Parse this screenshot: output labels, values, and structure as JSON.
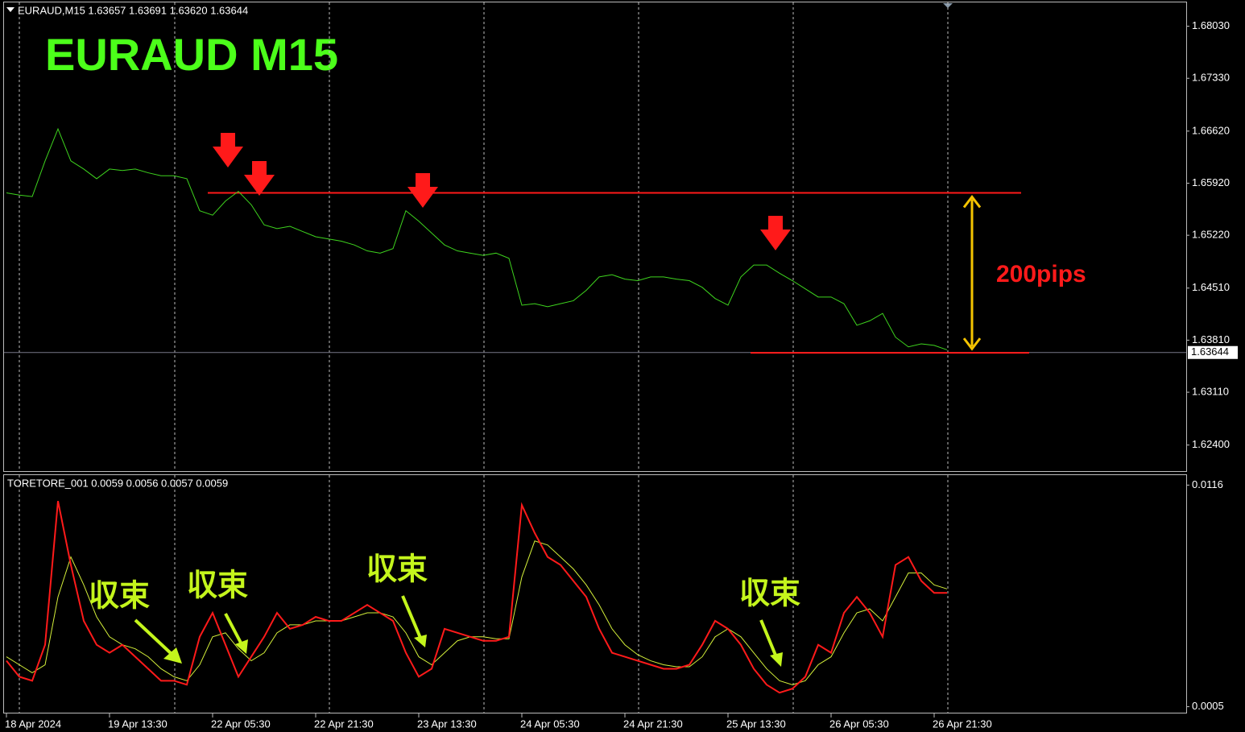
{
  "chart_data": [
    {
      "type": "line",
      "header": "EURAUD,M15  1.63657 1.63691 1.63620 1.63644",
      "title": "EURAUD  M15",
      "annotation": "200pips",
      "color": "#3ed41e",
      "categories": [
        "18 Apr 2024",
        null,
        null,
        null,
        null,
        null,
        null,
        null,
        "19 Apr 13:30",
        null,
        null,
        null,
        null,
        null,
        null,
        null,
        "22 Apr 05:30",
        null,
        null,
        null,
        null,
        null,
        null,
        null,
        "22 Apr 21:30",
        null,
        null,
        null,
        null,
        null,
        null,
        null,
        "23 Apr 13:30",
        null,
        null,
        null,
        null,
        null,
        null,
        null,
        "24 Apr 05:30",
        null,
        null,
        null,
        null,
        null,
        null,
        null,
        "24 Apr 21:30",
        null,
        null,
        null,
        null,
        null,
        null,
        null,
        "25 Apr 13:30",
        null,
        null,
        null,
        null,
        null,
        null,
        null,
        "26 Apr 05:30",
        null,
        null,
        null,
        null,
        null,
        null,
        null,
        "26 Apr 21:30",
        null
      ],
      "values": [
        1.6579,
        1.6576,
        1.6574,
        1.6622,
        1.6665,
        1.6622,
        1.6611,
        1.6598,
        1.6611,
        1.6609,
        1.6611,
        1.6606,
        1.6602,
        1.6602,
        1.6598,
        1.6555,
        1.6549,
        1.6568,
        1.6581,
        1.6563,
        1.6536,
        1.6531,
        1.6534,
        1.6527,
        1.652,
        1.6517,
        1.6514,
        1.6509,
        1.6501,
        1.6498,
        1.6504,
        1.6555,
        1.6541,
        1.6525,
        1.6509,
        1.6501,
        1.6498,
        1.6495,
        1.6498,
        1.6491,
        1.6428,
        1.643,
        1.6426,
        1.643,
        1.6434,
        1.6448,
        1.6466,
        1.6469,
        1.6463,
        1.6461,
        1.6466,
        1.6466,
        1.6463,
        1.6461,
        1.6452,
        1.6437,
        1.6428,
        1.6466,
        1.6482,
        1.6482,
        1.6471,
        1.6461,
        1.645,
        1.6439,
        1.6439,
        1.643,
        1.6401,
        1.6407,
        1.6417,
        1.6385,
        1.6372,
        1.6376,
        1.6374,
        1.6368
      ],
      "ylim": [
        1.6205,
        1.6835
      ],
      "yticks": [
        {
          "value": 1.6803,
          "label": "1.68030"
        },
        {
          "value": 1.6733,
          "label": "1.67330"
        },
        {
          "value": 1.6662,
          "label": "1.66620"
        },
        {
          "value": 1.6592,
          "label": "1.65920"
        },
        {
          "value": 1.6522,
          "label": "1.65220"
        },
        {
          "value": 1.6451,
          "label": "1.64510"
        },
        {
          "value": 1.6381,
          "label": "1.63810"
        },
        {
          "value": 1.6311,
          "label": "1.63110"
        },
        {
          "value": 1.624,
          "label": "1.62400"
        }
      ],
      "current_price": {
        "value": 1.63644,
        "label": "1.63644"
      },
      "resistance": 1.6579,
      "support": 1.6364
    },
    {
      "type": "line",
      "header": "TORETORE_001 0.0059 0.0056 0.0057 0.0059",
      "annotations": [
        "収束",
        "収束",
        "収束",
        "収束"
      ],
      "series": [
        {
          "color": "#ff1a1a",
          "values": [
            0.0028,
            0.002,
            0.0018,
            0.0036,
            0.0108,
            0.0076,
            0.0048,
            0.0036,
            0.0032,
            0.0036,
            0.003,
            0.0024,
            0.0018,
            0.0018,
            0.0016,
            0.004,
            0.0052,
            0.0036,
            0.002,
            0.003,
            0.004,
            0.0052,
            0.0044,
            0.0046,
            0.005,
            0.0048,
            0.0048,
            0.0052,
            0.0056,
            0.0052,
            0.0048,
            0.0032,
            0.002,
            0.0024,
            0.0044,
            0.0042,
            0.004,
            0.0038,
            0.0038,
            0.004,
            0.0106,
            0.0092,
            0.008,
            0.0076,
            0.0068,
            0.006,
            0.0044,
            0.0032,
            0.003,
            0.0028,
            0.0026,
            0.0024,
            0.0024,
            0.0026,
            0.0036,
            0.0048,
            0.0044,
            0.0036,
            0.0024,
            0.0016,
            0.0012,
            0.0014,
            0.002,
            0.0036,
            0.0032,
            0.0052,
            0.006,
            0.0052,
            0.004,
            0.0076,
            0.008,
            0.0068,
            0.0062,
            0.0062
          ]
        },
        {
          "color": "#d4ef3a",
          "values": [
            0.003,
            0.0026,
            0.0022,
            0.0026,
            0.006,
            0.008,
            0.0066,
            0.005,
            0.004,
            0.0036,
            0.0034,
            0.003,
            0.0024,
            0.002,
            0.0018,
            0.0026,
            0.004,
            0.0042,
            0.0034,
            0.0028,
            0.0032,
            0.0042,
            0.0046,
            0.0046,
            0.0048,
            0.0048,
            0.0048,
            0.005,
            0.0052,
            0.0052,
            0.005,
            0.0042,
            0.003,
            0.0026,
            0.0032,
            0.0038,
            0.004,
            0.004,
            0.0039,
            0.0039,
            0.007,
            0.0088,
            0.0086,
            0.008,
            0.0074,
            0.0066,
            0.0056,
            0.0044,
            0.0036,
            0.0031,
            0.0028,
            0.0026,
            0.0025,
            0.0025,
            0.003,
            0.004,
            0.0044,
            0.004,
            0.0032,
            0.0024,
            0.0018,
            0.0016,
            0.0018,
            0.0026,
            0.003,
            0.0042,
            0.0052,
            0.0054,
            0.0048,
            0.006,
            0.0072,
            0.0072,
            0.0066,
            0.0064
          ]
        }
      ],
      "ylim": [
        0.0002,
        0.0121
      ],
      "yticks": [
        0.0116,
        0.0005
      ]
    }
  ]
}
